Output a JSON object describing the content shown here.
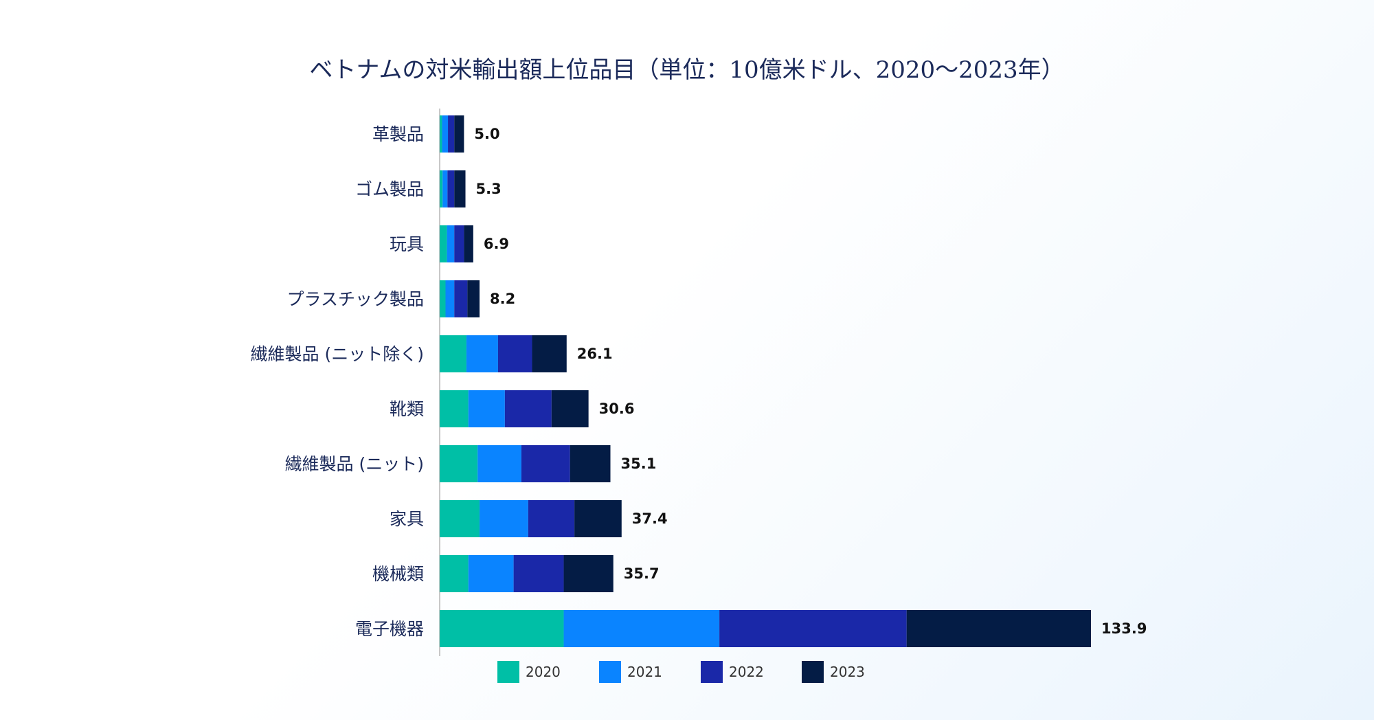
{
  "chart_data": {
    "type": "bar",
    "orientation": "horizontal",
    "stacked": true,
    "title": "ベトナムの対米輸出額上位品目（単位：10億米ドル、2020〜2023年）",
    "categories": [
      "革製品",
      "ゴム製品",
      "玩具",
      "プラスチック製品",
      "繊維製品 (ニット除く)",
      "靴類",
      "繊維製品 (ニット)",
      "家具",
      "機械類",
      "電子機器"
    ],
    "series": [
      {
        "name": "2020",
        "color": "#00bfa6",
        "values": [
          0.5,
          0.6,
          1.5,
          1.2,
          5.5,
          5.9,
          7.8,
          8.2,
          5.9,
          25.5
        ]
      },
      {
        "name": "2021",
        "color": "#0a84ff",
        "values": [
          1.2,
          1.0,
          1.5,
          1.8,
          6.5,
          7.5,
          9.0,
          10.0,
          9.3,
          32.0
        ]
      },
      {
        "name": "2022",
        "color": "#1a28a8",
        "values": [
          1.3,
          1.4,
          2.0,
          2.7,
          7.0,
          9.6,
          10.0,
          9.5,
          10.3,
          38.5
        ]
      },
      {
        "name": "2023",
        "color": "#041c45",
        "values": [
          2.0,
          2.3,
          1.9,
          2.5,
          7.1,
          7.6,
          8.3,
          9.7,
          10.2,
          37.9
        ]
      }
    ],
    "totals": [
      "5.0",
      "5.3",
      "6.9",
      "8.2",
      "26.1",
      "30.6",
      "35.1",
      "37.4",
      "35.7",
      "133.9"
    ],
    "xlim": [
      0,
      140
    ],
    "grid": false,
    "legend_position": "bottom"
  }
}
